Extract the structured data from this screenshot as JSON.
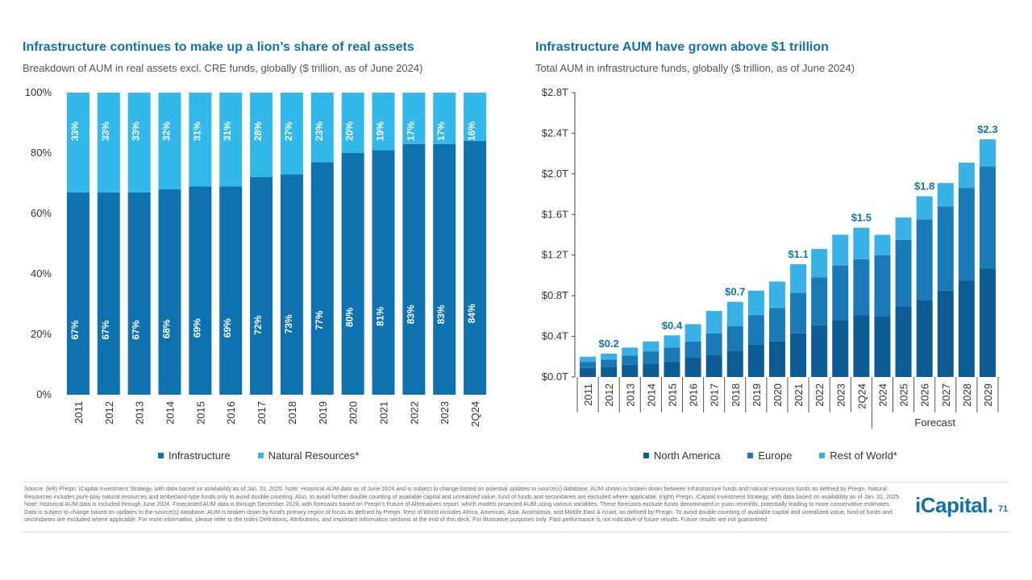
{
  "left": {
    "title": "Infrastructure continues to make up a lion’s share of real assets",
    "subtitle": "Breakdown of AUM in real assets excl. CRE funds, globally ($ trillion, as of June 2024)"
  },
  "right": {
    "title": "Infrastructure AUM have grown above $1 trillion",
    "subtitle": "Total AUM in infrastructure funds, globally ($ trillion, as of June 2024)",
    "forecast_label": "Forecast"
  },
  "chart_data": [
    {
      "type": "bar",
      "stacked": true,
      "categories": [
        "2011",
        "2012",
        "2013",
        "2014",
        "2015",
        "2016",
        "2017",
        "2018",
        "2019",
        "2020",
        "2021",
        "2022",
        "2023",
        "2Q24"
      ],
      "series": [
        {
          "name": "Infrastructure",
          "values": [
            67,
            67,
            67,
            68,
            69,
            69,
            72,
            73,
            77,
            80,
            81,
            83,
            83,
            84
          ],
          "labels": [
            "67%",
            "67%",
            "67%",
            "68%",
            "69%",
            "69%",
            "72%",
            "73%",
            "77%",
            "80%",
            "81%",
            "83%",
            "83%",
            "84%"
          ],
          "color": "#0f72b0"
        },
        {
          "name": "Natural Resources*",
          "values": [
            33,
            33,
            33,
            32,
            31,
            31,
            28,
            27,
            23,
            20,
            19,
            17,
            17,
            16
          ],
          "labels": [
            "33%",
            "33%",
            "33%",
            "32%",
            "31%",
            "31%",
            "28%",
            "27%",
            "23%",
            "20%",
            "19%",
            "17%",
            "17%",
            "16%"
          ],
          "color": "#33b8ec"
        }
      ],
      "legend": [
        "Infrastructure",
        "Natural Resources*"
      ],
      "ylim": [
        0,
        100
      ],
      "yticks": [
        0,
        20,
        40,
        60,
        80,
        100
      ],
      "ytick_labels": [
        "0%",
        "20%",
        "40%",
        "60%",
        "80%",
        "100%"
      ]
    },
    {
      "type": "bar",
      "stacked": true,
      "categories": [
        "2011",
        "2012",
        "2013",
        "2014",
        "2015",
        "2016",
        "2017",
        "2018",
        "2019",
        "2020",
        "2021",
        "2022",
        "2023",
        "2Q24",
        "2024",
        "2025",
        "2026",
        "2027",
        "2028",
        "2029"
      ],
      "forecast_categories": [
        "2024",
        "2025",
        "2026",
        "2027",
        "2028",
        "2029"
      ],
      "series": [
        {
          "name": "North America",
          "values": [
            0.09,
            0.1,
            0.12,
            0.13,
            0.15,
            0.19,
            0.22,
            0.26,
            0.32,
            0.35,
            0.43,
            0.51,
            0.56,
            0.61,
            0.6,
            0.69,
            0.76,
            0.85,
            0.95,
            1.07
          ],
          "color": "#0b5c95"
        },
        {
          "name": "Europe",
          "values": [
            0.06,
            0.07,
            0.09,
            0.12,
            0.14,
            0.16,
            0.21,
            0.24,
            0.29,
            0.33,
            0.4,
            0.47,
            0.54,
            0.55,
            0.6,
            0.66,
            0.79,
            0.83,
            0.91,
            1.0
          ],
          "color": "#1a7ab8"
        },
        {
          "name": "Rest of World*",
          "values": [
            0.05,
            0.06,
            0.08,
            0.1,
            0.12,
            0.17,
            0.22,
            0.24,
            0.24,
            0.26,
            0.28,
            0.28,
            0.3,
            0.31,
            0.2,
            0.22,
            0.23,
            0.23,
            0.25,
            0.27
          ],
          "color": "#38b1e6"
        }
      ],
      "annotations": [
        {
          "category": "2012",
          "label": "$0.2"
        },
        {
          "category": "2015",
          "label": "$0.4"
        },
        {
          "category": "2018",
          "label": "$0.7"
        },
        {
          "category": "2021",
          "label": "$1.1"
        },
        {
          "category": "2Q24",
          "label": "$1.5"
        },
        {
          "category": "2026",
          "label": "$1.8"
        },
        {
          "category": "2029",
          "label": "$2.3"
        }
      ],
      "legend": [
        "North America",
        "Europe",
        "Rest of World*"
      ],
      "ylim": [
        0,
        2.8
      ],
      "yticks": [
        0,
        0.4,
        0.8,
        1.2,
        1.6,
        2.0,
        2.4,
        2.8
      ],
      "ytick_labels": [
        "$0.0T",
        "$0.4T",
        "$0.8T",
        "$1.2T",
        "$1.6T",
        "$2.0T",
        "$2.4T",
        "$2.8T"
      ]
    }
  ],
  "footnote": "Source: (left) Preqin, iCapital Investment Strategy, with data based on availability as of Jan. 31, 2025. Note: Historical AUM data as of June 2024 and is subject to change based on potential updates to source(s) database. AUM shown is broken down between infrastructure funds and natural resources funds as defined by Preqin. Natural Resources includes pure-play natural resources and timberland-type funds only to avoid double counting. Also, to avoid further double counting of available capital and unrealized value, fund of funds and secondaries are excluded where applicable. (right) Preqin, iCapital Investment Strategy, with data based on availability as of Jan. 31, 2025. Note: Historical AUM data is included through June 2024. Forecasted AUM data is through December 2029, with forecasts based on Preqin's Future of Alternatives report, which models projected AUM using various variables. These forecasts exclude funds denominated in yuan renminbi, potentially leading to more conservative estimates. Data is subject to change based on updates to the source(s) database. AUM is broken down by fund's primary region of focus as defined by Preqin. Rest of World includes Africa, Americas, Asia, Australasia, and Middle East & Israel, as defined by Preqin. To avoid double counting of available capital and unrealized value, fund of funds and secondaries are excluded where applicable. For more information, please refer to the Index Definitions, Attributions, and Important Information sections at the end of this deck. For illustrative purposes only. Past performance is not indicative of future results. Future results are not guaranteed.",
  "brand": {
    "logo_text": "iCapital.",
    "page_number": "71"
  }
}
